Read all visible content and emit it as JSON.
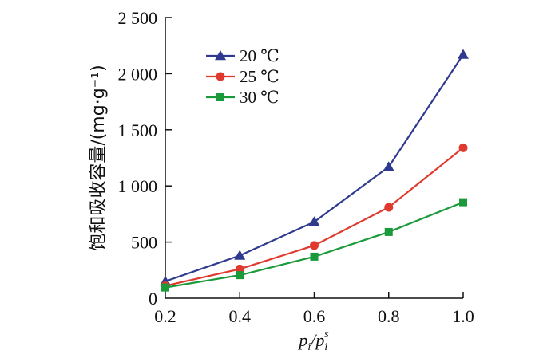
{
  "chart_data": {
    "type": "line",
    "title": "",
    "xlabel": "p_i/p_i^s",
    "ylabel": "饱和吸收容量/(mg·g⁻¹)",
    "x": [
      0.2,
      0.4,
      0.6,
      0.8,
      1.0
    ],
    "xlim": [
      0.2,
      1.0
    ],
    "ylim": [
      0,
      2500
    ],
    "xticks": [
      "0.2",
      "0.4",
      "0.6",
      "0.8",
      "1.0"
    ],
    "yticks": [
      "0",
      "500",
      "1 000",
      "1 500",
      "2 000",
      "2 500"
    ],
    "ytick_values": [
      0,
      500,
      1000,
      1500,
      2000,
      2500
    ],
    "grid": false,
    "legend_position": "top-left",
    "series": [
      {
        "name": "20 ℃",
        "color": "#2f3a8f",
        "marker": "triangle",
        "values": [
          150,
          380,
          680,
          1170,
          2170
        ]
      },
      {
        "name": "25 ℃",
        "color": "#e03a2e",
        "marker": "circle",
        "values": [
          110,
          260,
          470,
          810,
          1340
        ]
      },
      {
        "name": "30 ℃",
        "color": "#1a9a3a",
        "marker": "square",
        "values": [
          95,
          205,
          370,
          590,
          855
        ]
      }
    ]
  }
}
